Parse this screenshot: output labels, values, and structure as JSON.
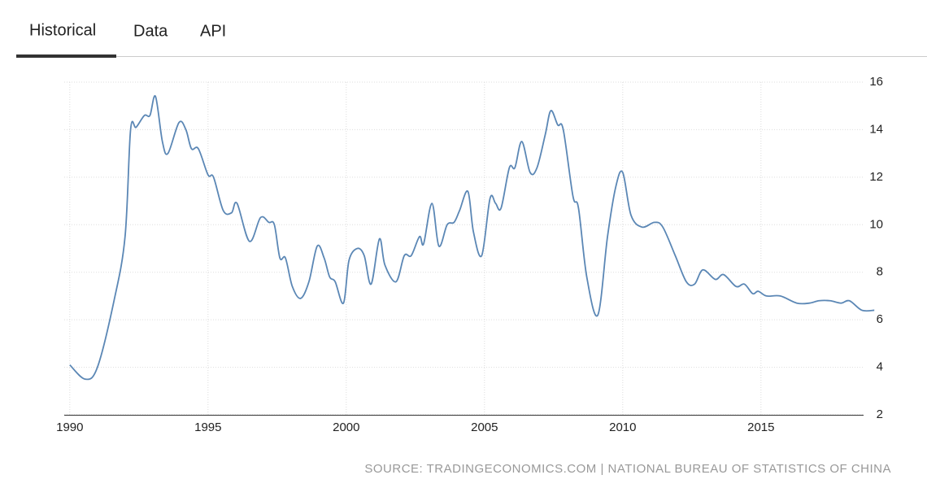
{
  "tabs": [
    "Historical",
    "Data",
    "API"
  ],
  "source": "SOURCE: TRADINGECONOMICS.COM | NATIONAL BUREAU OF STATISTICS OF CHINA",
  "chart_data": {
    "type": "line",
    "color": "#5b87b5",
    "grid": true,
    "xlim": [
      1989.8,
      2019.3
    ],
    "ylim": [
      2,
      16
    ],
    "xticks": [
      1990,
      1995,
      2000,
      2005,
      2010,
      2015
    ],
    "yticks": [
      2,
      4,
      6,
      8,
      10,
      12,
      14,
      16
    ],
    "x": [
      1990.0,
      1990.56,
      1991.0,
      1991.6,
      1992.0,
      1992.2,
      1992.4,
      1992.7,
      1992.9,
      1993.1,
      1993.35,
      1993.55,
      1993.95,
      1994.2,
      1994.4,
      1994.65,
      1995.0,
      1995.2,
      1995.55,
      1995.85,
      1996.05,
      1996.5,
      1996.9,
      1997.2,
      1997.4,
      1997.6,
      1997.8,
      1998.05,
      1998.35,
      1998.65,
      1998.95,
      1999.2,
      1999.4,
      1999.6,
      1999.9,
      2000.1,
      2000.4,
      2000.65,
      2000.9,
      2001.2,
      2001.4,
      2001.8,
      2002.1,
      2002.35,
      2002.65,
      2002.8,
      2003.1,
      2003.35,
      2003.65,
      2003.9,
      2004.1,
      2004.4,
      2004.6,
      2004.9,
      2005.2,
      2005.4,
      2005.6,
      2005.9,
      2006.1,
      2006.35,
      2006.65,
      2006.9,
      2007.2,
      2007.4,
      2007.65,
      2007.85,
      2008.2,
      2008.4,
      2008.7,
      2009.1,
      2009.45,
      2009.75,
      2010.0,
      2010.3,
      2010.7,
      2011.15,
      2011.45,
      2011.9,
      2012.3,
      2012.6,
      2012.9,
      2013.35,
      2013.65,
      2014.1,
      2014.4,
      2014.7,
      2014.9,
      2015.2,
      2015.7,
      2016.3,
      2016.75,
      2017.1,
      2017.5,
      2017.9,
      2018.2,
      2018.65,
      2019.1
    ],
    "values": [
      4.1,
      3.5,
      4.0,
      6.8,
      9.5,
      14.0,
      14.1,
      14.6,
      14.6,
      15.4,
      13.5,
      13.0,
      14.3,
      14.0,
      13.2,
      13.2,
      12.1,
      12.0,
      10.6,
      10.5,
      10.9,
      9.3,
      10.3,
      10.1,
      10.0,
      8.6,
      8.6,
      7.4,
      6.9,
      7.6,
      9.1,
      8.6,
      7.8,
      7.6,
      6.7,
      8.5,
      9.0,
      8.7,
      7.5,
      9.4,
      8.3,
      7.6,
      8.7,
      8.7,
      9.5,
      9.2,
      10.9,
      9.1,
      10.0,
      10.1,
      10.6,
      11.4,
      9.7,
      8.7,
      11.1,
      10.9,
      10.7,
      12.4,
      12.4,
      13.5,
      12.2,
      12.4,
      13.8,
      14.8,
      14.2,
      14.0,
      11.2,
      10.7,
      7.8,
      6.2,
      9.5,
      11.6,
      12.2,
      10.4,
      9.9,
      10.1,
      9.9,
      8.7,
      7.6,
      7.5,
      8.1,
      7.7,
      7.9,
      7.4,
      7.5,
      7.1,
      7.2,
      7.0,
      7.0,
      6.7,
      6.7,
      6.8,
      6.8,
      6.7,
      6.8,
      6.4,
      6.4
    ]
  }
}
